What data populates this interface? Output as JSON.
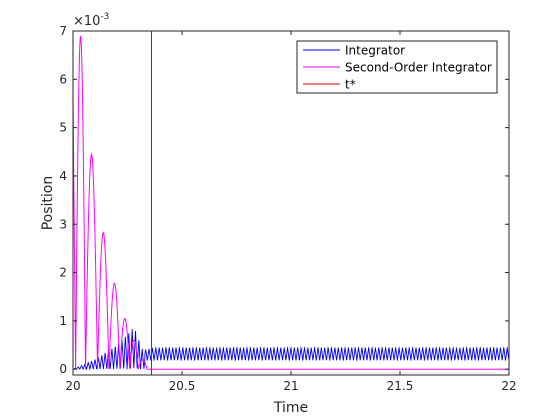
{
  "chart_data": {
    "type": "line",
    "title": "",
    "xlabel": "Time",
    "ylabel": "Position",
    "xlim": [
      20,
      22
    ],
    "ylim": [
      -0.00012,
      0.007
    ],
    "exponent_label": "×10",
    "exponent_power": "-3",
    "x_ticks": [
      20,
      20.5,
      21,
      21.5,
      22
    ],
    "x_tick_labels": [
      "20",
      "20.5",
      "21",
      "21.5",
      "22"
    ],
    "y_ticks": [
      0,
      1,
      2,
      3,
      4,
      5,
      6,
      7
    ],
    "y_tick_labels": [
      "0",
      "1",
      "2",
      "3",
      "4",
      "5",
      "6",
      "7"
    ],
    "y_tick_scale": 0.001,
    "grid": false,
    "legend_position": "top-right",
    "series": [
      {
        "name": "Integrator",
        "color": "#0000ff",
        "style": "oscillating",
        "envelope_x": [
          20,
          20.1,
          20.2,
          20.28,
          20.32,
          20.38,
          21,
          22
        ],
        "envelope_y": [
          0,
          0.0002,
          0.0005,
          0.00088,
          0.0004,
          0.00045,
          0.00045,
          0.00045
        ],
        "period": 0.0155,
        "floor": 0.00018,
        "floor_start": 20.33
      },
      {
        "name": "Second-Order Integrator",
        "color": "#ff00ff",
        "style": "decaying-oscillation",
        "peaks_x": [
          20.03,
          20.085,
          20.14,
          20.19,
          20.24,
          20.28,
          20.32
        ],
        "peaks_y": [
          0.0069,
          0.00445,
          0.00283,
          0.00178,
          0.00105,
          0.0006,
          0.0002
        ],
        "end_x": 20.34
      },
      {
        "name": "t*",
        "color": "#dd0000",
        "style": "vertical-line",
        "x": 20.36
      }
    ]
  }
}
